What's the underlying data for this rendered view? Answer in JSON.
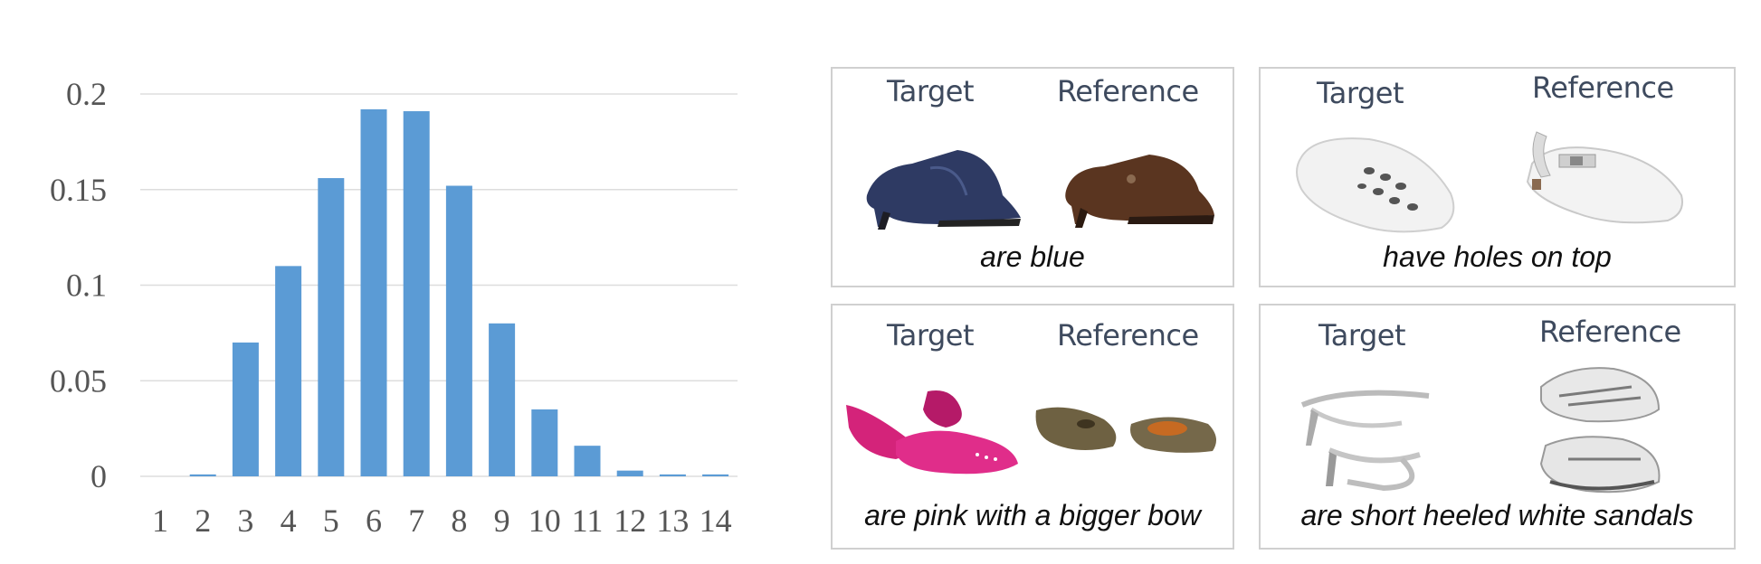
{
  "chart_data": {
    "type": "bar",
    "categories": [
      "1",
      "2",
      "3",
      "4",
      "5",
      "6",
      "7",
      "8",
      "9",
      "10",
      "11",
      "12",
      "13",
      "14"
    ],
    "values": [
      0.0,
      0.001,
      0.07,
      0.11,
      0.156,
      0.192,
      0.191,
      0.152,
      0.08,
      0.035,
      0.016,
      0.003,
      0.001,
      0.001
    ],
    "yticks": [
      "0",
      "0.05",
      "0.1",
      "0.15",
      "0.2"
    ],
    "ylim": [
      0,
      0.2
    ],
    "grid": true,
    "bar_color": "#5b9bd5"
  },
  "examples": [
    {
      "target_label": "Target",
      "reference_label": "Reference",
      "caption": "are blue",
      "target_shoe": "navy-mule-shoe",
      "reference_shoe": "brown-mule-shoe"
    },
    {
      "target_label": "Target",
      "reference_label": "Reference",
      "caption": "have holes on top",
      "target_shoe": "white-clog-with-holes",
      "reference_shoe": "white-clog-with-strap"
    },
    {
      "target_label": "Target",
      "reference_label": "Reference",
      "caption": "are pink with a bigger bow",
      "target_shoe": "pink-bow-flats",
      "reference_shoe": "olive-flats"
    },
    {
      "target_label": "Target",
      "reference_label": "Reference",
      "caption": "are short heeled white sandals",
      "target_shoe": "silver-heeled-sandals",
      "reference_shoe": "silver-sneakers"
    }
  ]
}
